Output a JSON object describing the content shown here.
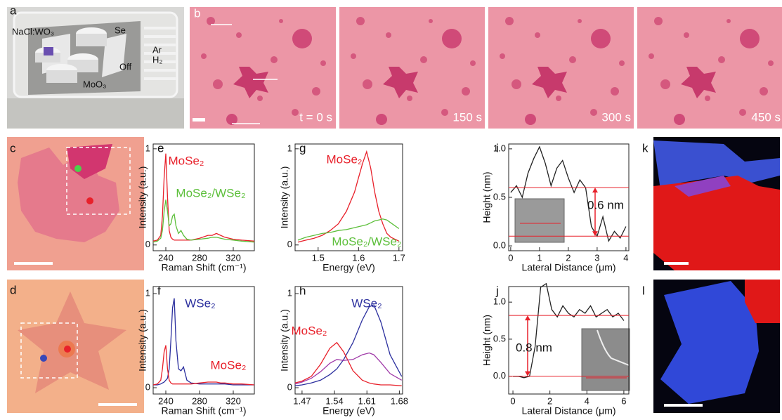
{
  "figure": {
    "panel_labels": [
      "a",
      "b",
      "c",
      "d",
      "e",
      "f",
      "g",
      "h",
      "i",
      "j",
      "k",
      "l"
    ],
    "schematic_labels": [
      "NaCl:WO₃",
      "Se",
      "Ar",
      "H₂",
      "Off",
      "MoO₃"
    ],
    "time_labels": [
      "t = 0 s",
      "150 s",
      "300 s",
      "450 s"
    ]
  },
  "chart_data": [
    {
      "type": "line",
      "xlabel": "Raman Shift (cm⁻¹)",
      "ylabel": "Intensity (a.u.)",
      "x": [
        225,
        230,
        234,
        236,
        238,
        240,
        242,
        244,
        246,
        248,
        250,
        252,
        255,
        258,
        261,
        265,
        270,
        280,
        290,
        295,
        300,
        305,
        310,
        320,
        330,
        345
      ],
      "series": [
        {
          "name": "MoSe₂",
          "color": "#e8202a",
          "values": [
            0.04,
            0.05,
            0.1,
            0.3,
            0.7,
            0.95,
            0.5,
            0.15,
            0.08,
            0.06,
            0.05,
            0.05,
            0.05,
            0.05,
            0.05,
            0.05,
            0.05,
            0.07,
            0.1,
            0.1,
            0.12,
            0.1,
            0.08,
            0.06,
            0.05,
            0.04
          ]
        },
        {
          "name": "MoSe₂/WSe₂",
          "color": "#5cbf3a",
          "values": [
            0.03,
            0.04,
            0.07,
            0.15,
            0.35,
            0.47,
            0.35,
            0.2,
            0.22,
            0.3,
            0.32,
            0.2,
            0.12,
            0.15,
            0.1,
            0.06,
            0.05,
            0.06,
            0.07,
            0.08,
            0.08,
            0.07,
            0.06,
            0.05,
            0.04,
            0.03
          ]
        }
      ],
      "xlim": [
        225,
        345
      ],
      "ylim": [
        -0.06,
        1.05
      ],
      "xticks": [
        240,
        280,
        320
      ],
      "yticks": [
        0,
        1
      ]
    },
    {
      "type": "line",
      "xlabel": "Raman Shift (cm⁻¹)",
      "ylabel": "Intensity (a.u.)",
      "x": [
        225,
        230,
        234,
        236,
        238,
        240,
        242,
        244,
        246,
        248,
        250,
        252,
        255,
        258,
        261,
        265,
        270,
        280,
        290,
        295,
        300,
        305,
        310,
        320,
        330,
        345
      ],
      "series": [
        {
          "name": "WSe₂",
          "color": "#2b2f9e",
          "values": [
            0.03,
            0.03,
            0.04,
            0.05,
            0.06,
            0.08,
            0.1,
            0.2,
            0.5,
            0.85,
            0.95,
            0.5,
            0.2,
            0.18,
            0.22,
            0.08,
            0.05,
            0.04,
            0.04,
            0.04,
            0.04,
            0.04,
            0.04,
            0.03,
            0.03,
            0.03
          ]
        },
        {
          "name": "MoSe₂",
          "color": "#e8202a",
          "values": [
            0.03,
            0.04,
            0.08,
            0.2,
            0.38,
            0.45,
            0.2,
            0.08,
            0.05,
            0.04,
            0.04,
            0.04,
            0.04,
            0.04,
            0.04,
            0.04,
            0.04,
            0.05,
            0.06,
            0.06,
            0.06,
            0.05,
            0.05,
            0.04,
            0.04,
            0.03
          ]
        }
      ],
      "xlim": [
        225,
        345
      ],
      "ylim": [
        -0.067,
        1.075
      ],
      "xticks": [
        240,
        280,
        320
      ],
      "yticks": [
        0,
        1
      ]
    },
    {
      "type": "line",
      "xlabel": "Energy (eV)",
      "ylabel": "Intensity (a.u.)",
      "x": [
        1.45,
        1.47,
        1.49,
        1.51,
        1.53,
        1.55,
        1.57,
        1.59,
        1.6,
        1.61,
        1.62,
        1.63,
        1.64,
        1.65,
        1.66,
        1.67,
        1.68,
        1.7
      ],
      "series": [
        {
          "name": "MoSe₂",
          "color": "#e8202a",
          "values": [
            0.03,
            0.05,
            0.07,
            0.1,
            0.15,
            0.22,
            0.35,
            0.55,
            0.7,
            0.85,
            0.97,
            0.8,
            0.55,
            0.35,
            0.22,
            0.12,
            0.08,
            0.04
          ]
        },
        {
          "name": "MoSe₂/WSe₂",
          "color": "#5cbf3a",
          "values": [
            0.05,
            0.08,
            0.1,
            0.12,
            0.13,
            0.15,
            0.16,
            0.18,
            0.19,
            0.2,
            0.21,
            0.23,
            0.25,
            0.26,
            0.27,
            0.26,
            0.23,
            0.17
          ]
        }
      ],
      "xlim": [
        1.443,
        1.709
      ],
      "ylim": [
        -0.06,
        1.05
      ],
      "xticks": [
        1.5,
        1.6,
        1.7
      ],
      "yticks": [
        0,
        1
      ]
    },
    {
      "type": "line",
      "xlabel": "Energy (eV)",
      "ylabel": "Intensity (a.u.)",
      "x": [
        1.455,
        1.47,
        1.49,
        1.51,
        1.53,
        1.545,
        1.56,
        1.58,
        1.6,
        1.615,
        1.625,
        1.64,
        1.66,
        1.685
      ],
      "series": [
        {
          "name": "WSe₂",
          "color": "#2b2f9e",
          "values": [
            0.02,
            0.03,
            0.05,
            0.08,
            0.14,
            0.2,
            0.3,
            0.48,
            0.72,
            0.86,
            0.88,
            0.7,
            0.35,
            0.12
          ]
        },
        {
          "name": "MoSe₂",
          "color": "#e8202a",
          "values": [
            0.05,
            0.07,
            0.12,
            0.25,
            0.42,
            0.48,
            0.38,
            0.18,
            0.08,
            0.05,
            0.04,
            0.03,
            0.03,
            0.02
          ]
        },
        {
          "color": "#a03aa8",
          "values": [
            0.04,
            0.06,
            0.1,
            0.17,
            0.26,
            0.3,
            0.29,
            0.3,
            0.35,
            0.37,
            0.35,
            0.27,
            0.15,
            0.08
          ]
        }
      ],
      "xlim": [
        1.455,
        1.687
      ],
      "ylim": [
        -0.067,
        1.075
      ],
      "xticks": [
        1.47,
        1.54,
        1.61,
        1.68
      ],
      "yticks": [
        0,
        1
      ]
    },
    {
      "type": "line",
      "xlabel": "Lateral Distance (μm)",
      "ylabel": "Height (nm)",
      "x": [
        0,
        0.2,
        0.4,
        0.6,
        0.8,
        1,
        1.2,
        1.4,
        1.6,
        1.8,
        2,
        2.2,
        2.4,
        2.6,
        2.8,
        3,
        3.2,
        3.4,
        3.6,
        3.8,
        4
      ],
      "values": [
        0.55,
        0.62,
        0.5,
        0.75,
        0.9,
        1.02,
        0.85,
        0.62,
        0.8,
        0.88,
        0.7,
        0.55,
        0.68,
        0.6,
        0.2,
        0.1,
        0.3,
        0.05,
        0.15,
        0.08,
        0.2
      ],
      "color": "#222222",
      "reference_lines": [
        0.6,
        0.1
      ],
      "reference_color": "#e8202a",
      "annotations": [
        "0.6 nm"
      ],
      "xlim": [
        -0.07,
        4.1
      ],
      "ylim": [
        -0.05,
        1.05
      ],
      "xticks": [
        0,
        1,
        2,
        3,
        4
      ],
      "yticks": [
        {
          "value": 0,
          "label": "0.0"
        },
        {
          "value": 0.5,
          "label": "0.5"
        },
        {
          "value": 1,
          "label": "1.0"
        }
      ]
    },
    {
      "type": "line",
      "xlabel": "Lateral Distance (μm)",
      "ylabel": "Height (nm)",
      "x": [
        0,
        0.3,
        0.6,
        0.9,
        1.2,
        1.5,
        1.8,
        2.1,
        2.4,
        2.7,
        3,
        3.3,
        3.6,
        3.9,
        4.2,
        4.5,
        4.8,
        5.1,
        5.4,
        5.7,
        6
      ],
      "values": [
        0,
        0,
        -0.02,
        0,
        0.4,
        1.2,
        1.25,
        0.9,
        0.8,
        0.95,
        0.85,
        0.8,
        0.9,
        0.85,
        0.95,
        0.8,
        0.85,
        0.9,
        0.8,
        0.85,
        0.75
      ],
      "color": "#222222",
      "reference_lines": [
        0.82,
        0
      ],
      "reference_color": "#e8202a",
      "annotations": [
        "0.8 nm"
      ],
      "xlim": [
        -0.23,
        6.27
      ],
      "ylim": [
        -0.24,
        1.21
      ],
      "xticks": [
        0,
        2,
        4,
        6
      ],
      "yticks": [
        {
          "value": 0,
          "label": "0.0"
        },
        {
          "value": 0.5,
          "label": "0.5"
        },
        {
          "value": 1,
          "label": "1.0"
        }
      ]
    }
  ]
}
